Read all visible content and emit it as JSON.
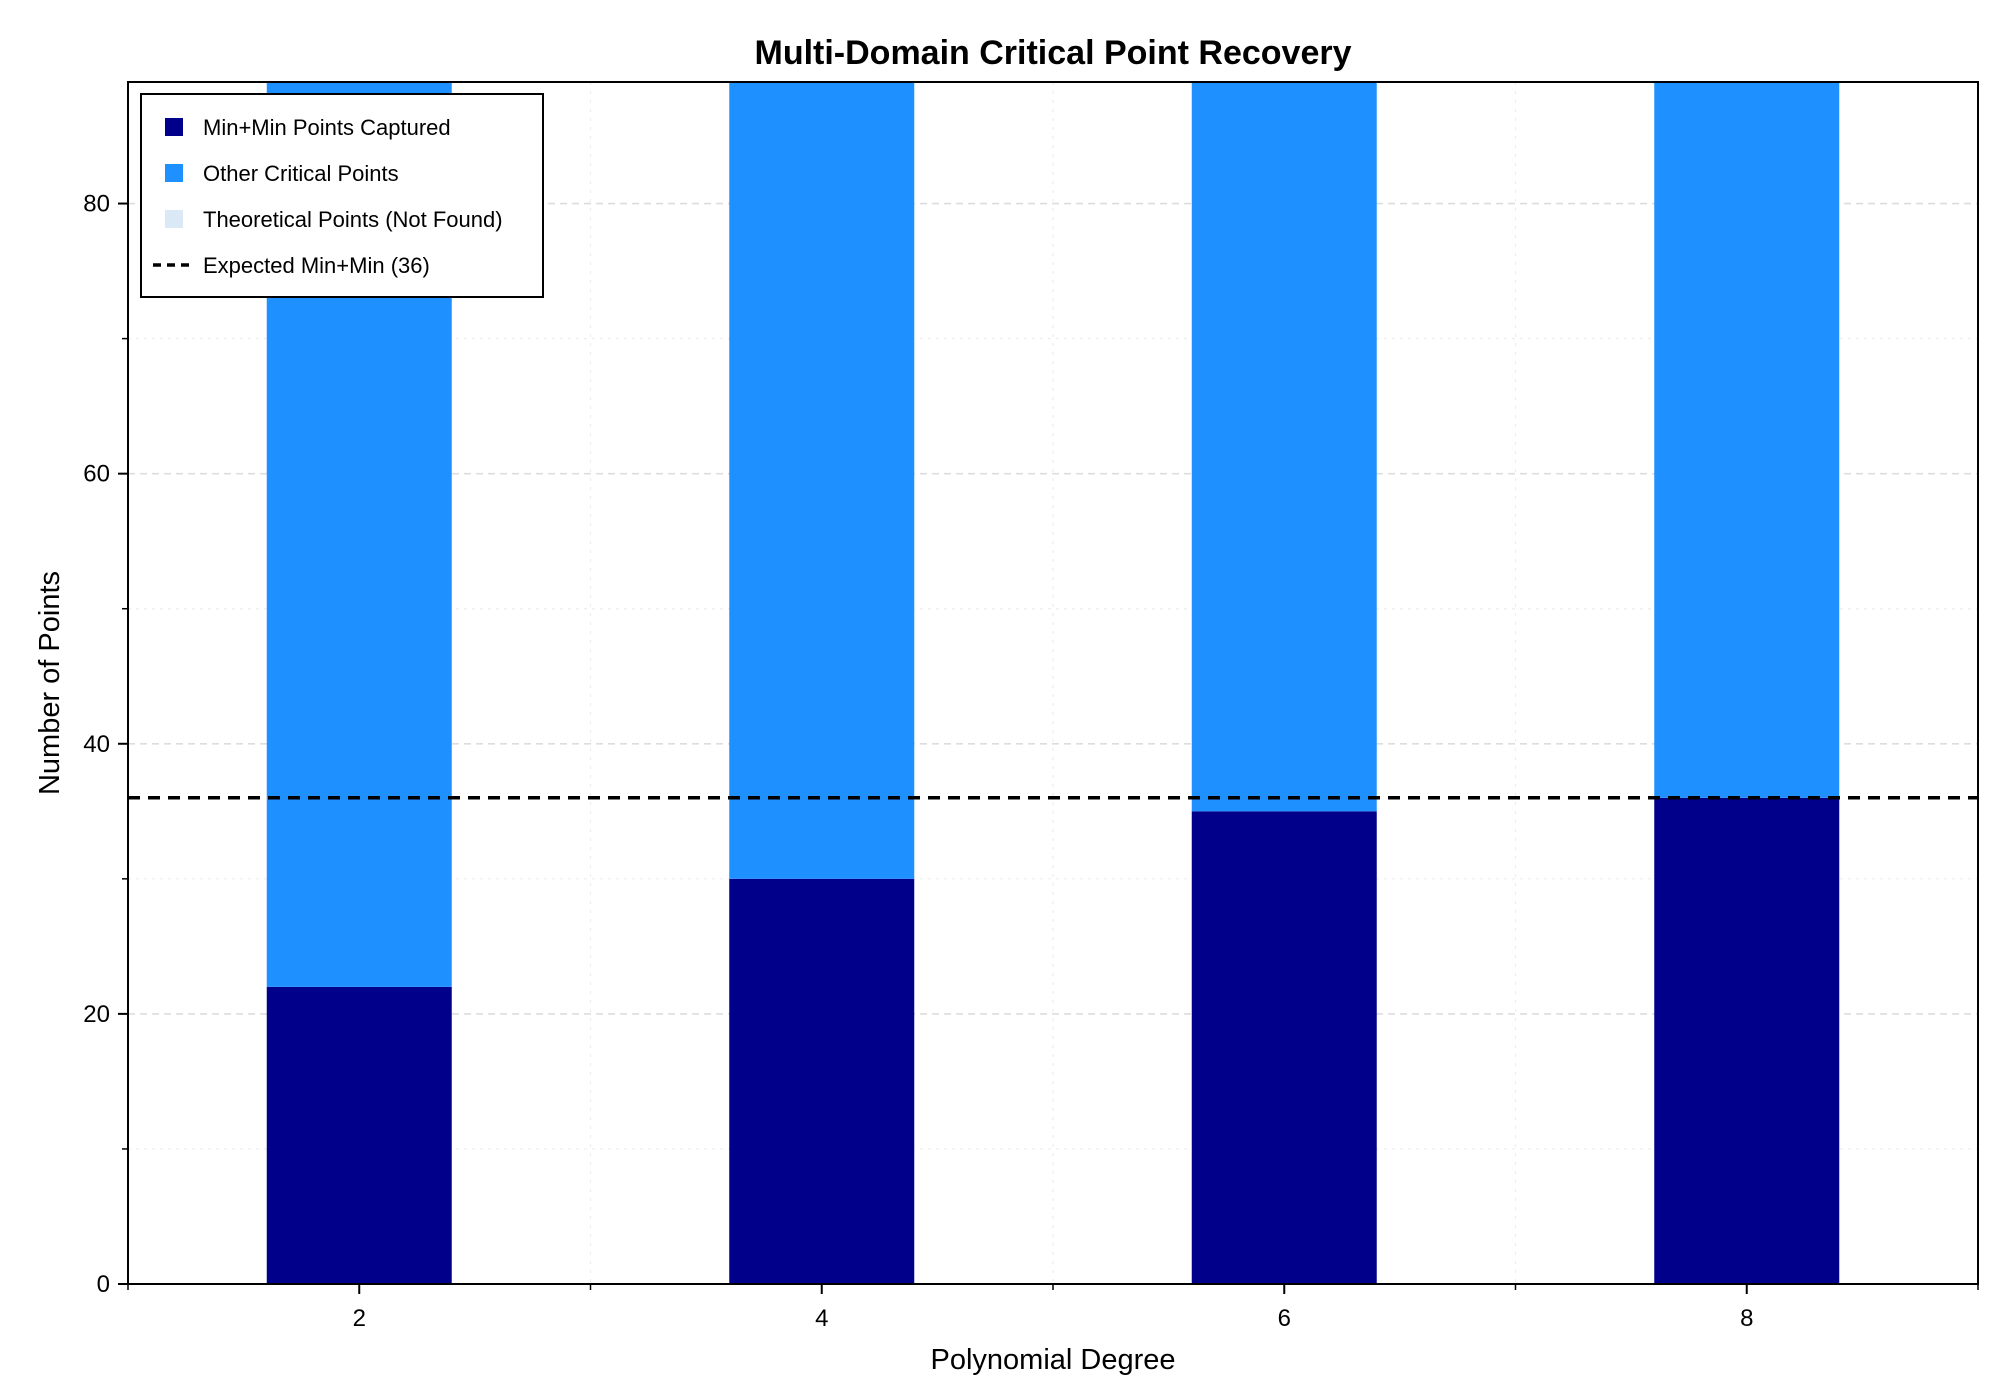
{
  "chart_data": {
    "type": "bar",
    "stacked": true,
    "title": "Multi-Domain Critical Point Recovery",
    "xlabel": "Polynomial Degree",
    "ylabel": "Number of Points",
    "categories": [
      2,
      4,
      6,
      8
    ],
    "xlim": [
      1,
      9
    ],
    "ylim": [
      0,
      89
    ],
    "yticks": [
      0,
      20,
      40,
      60,
      80
    ],
    "xticks": [
      2,
      4,
      6,
      8
    ],
    "grid": true,
    "legend_position": "top-left",
    "series": [
      {
        "name": "Min+Min Points Captured",
        "color": "#00008b",
        "values": [
          22,
          30,
          35,
          36
        ]
      },
      {
        "name": "Other Critical Points",
        "color": "#1e90ff",
        "values": [
          67,
          59,
          54,
          53
        ]
      },
      {
        "name": "Theoretical Points (Not Found)",
        "color": "#dbe9f6",
        "values": [
          0,
          0,
          0,
          0
        ]
      }
    ],
    "reference_line": {
      "name": "Expected Min+Min (36)",
      "value": 36,
      "color": "#000000",
      "style": "dashed"
    }
  }
}
